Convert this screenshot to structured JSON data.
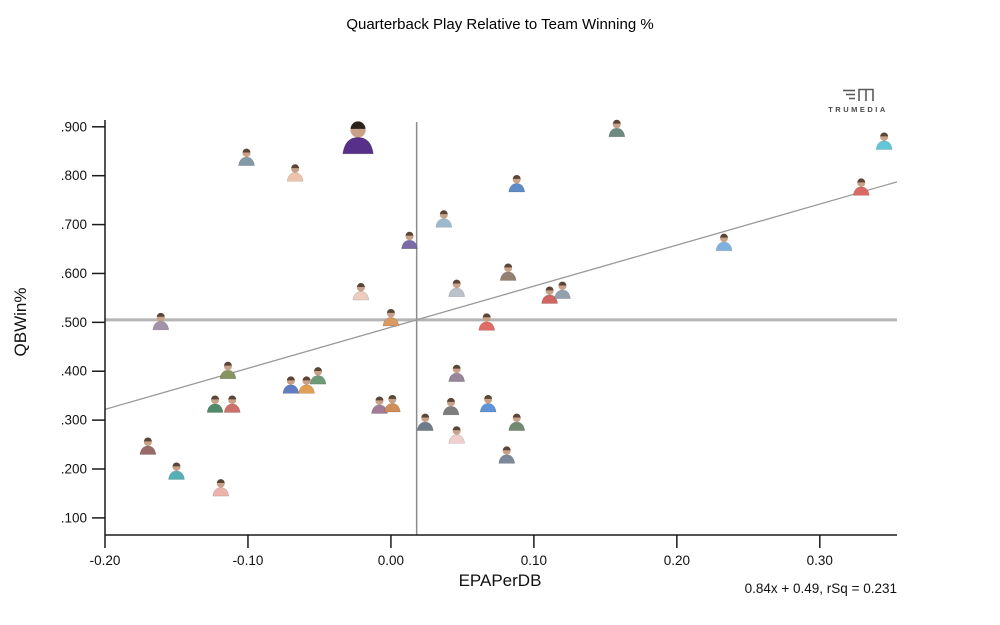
{
  "branding": {
    "name": "TRUMEDIA"
  },
  "chart_data": {
    "type": "scatter",
    "title": "Quarterback Play Relative to Team Winning %",
    "xlabel": "EPAPerDB",
    "ylabel": "QBWin%",
    "equation": "0.84x + 0.49, rSq = 0.231",
    "trend": {
      "slope": 0.84,
      "intercept": 0.49,
      "rsq": 0.231
    },
    "reference_lines": {
      "x": 0.018,
      "y": 0.505
    },
    "xlim": [
      -0.2,
      0.354
    ],
    "ylim": [
      0.065,
      0.918
    ],
    "x_ticks": [
      {
        "value": -0.2,
        "label": "-0.20"
      },
      {
        "value": -0.1,
        "label": "-0.10"
      },
      {
        "value": 0.0,
        "label": "0.00"
      },
      {
        "value": 0.1,
        "label": "0.10"
      },
      {
        "value": 0.2,
        "label": "0.20"
      },
      {
        "value": 0.3,
        "label": "0.30"
      }
    ],
    "y_ticks": [
      {
        "value": 0.9,
        "label": ".900"
      },
      {
        "value": 0.8,
        "label": ".800"
      },
      {
        "value": 0.7,
        "label": ".700"
      },
      {
        "value": 0.6,
        "label": ".600"
      },
      {
        "value": 0.5,
        "label": ".500"
      },
      {
        "value": 0.4,
        "label": ".400"
      },
      {
        "value": 0.3,
        "label": ".300"
      },
      {
        "value": 0.2,
        "label": ".200"
      },
      {
        "value": 0.1,
        "label": ".100"
      }
    ],
    "points": [
      {
        "x": -0.023,
        "y": 0.878,
        "color": "#57308a",
        "hair": "#2b221c",
        "highlight": true
      },
      {
        "x": 0.158,
        "y": 0.897,
        "color": "#6d8a80"
      },
      {
        "x": 0.345,
        "y": 0.871,
        "color": "#63c6d6"
      },
      {
        "x": -0.101,
        "y": 0.838,
        "color": "#8598a6"
      },
      {
        "x": -0.067,
        "y": 0.806,
        "color": "#eec3ab"
      },
      {
        "x": 0.088,
        "y": 0.784,
        "color": "#5f8cc7"
      },
      {
        "x": 0.329,
        "y": 0.777,
        "color": "#d96a66"
      },
      {
        "x": 0.037,
        "y": 0.712,
        "color": "#9db9cc"
      },
      {
        "x": 0.013,
        "y": 0.668,
        "color": "#7a6aa8"
      },
      {
        "x": 0.233,
        "y": 0.664,
        "color": "#7fb0de"
      },
      {
        "x": 0.082,
        "y": 0.603,
        "color": "#93806f"
      },
      {
        "x": -0.021,
        "y": 0.563,
        "color": "#eeccc0"
      },
      {
        "x": 0.046,
        "y": 0.57,
        "color": "#b9c2c9"
      },
      {
        "x": 0.111,
        "y": 0.556,
        "color": "#cf6661"
      },
      {
        "x": 0.12,
        "y": 0.566,
        "color": "#93a1ad"
      },
      {
        "x": 0.0,
        "y": 0.51,
        "color": "#d89a62"
      },
      {
        "x": -0.161,
        "y": 0.502,
        "color": "#a393a8"
      },
      {
        "x": 0.067,
        "y": 0.501,
        "color": "#e06a64"
      },
      {
        "x": -0.114,
        "y": 0.402,
        "color": "#87955f"
      },
      {
        "x": -0.051,
        "y": 0.391,
        "color": "#6f9a78"
      },
      {
        "x": 0.046,
        "y": 0.396,
        "color": "#97859a"
      },
      {
        "x": -0.07,
        "y": 0.372,
        "color": "#5f7ec2"
      },
      {
        "x": -0.059,
        "y": 0.372,
        "color": "#e2a055"
      },
      {
        "x": -0.123,
        "y": 0.333,
        "color": "#4f8a68"
      },
      {
        "x": -0.111,
        "y": 0.333,
        "color": "#cf6f6a"
      },
      {
        "x": -0.008,
        "y": 0.331,
        "color": "#a27b96"
      },
      {
        "x": 0.001,
        "y": 0.334,
        "color": "#cf8d5a"
      },
      {
        "x": 0.042,
        "y": 0.328,
        "color": "#7d7d7d"
      },
      {
        "x": 0.068,
        "y": 0.334,
        "color": "#5f94d8"
      },
      {
        "x": 0.024,
        "y": 0.296,
        "color": "#6e7b89"
      },
      {
        "x": 0.088,
        "y": 0.296,
        "color": "#6f8a6f"
      },
      {
        "x": 0.046,
        "y": 0.27,
        "color": "#efd0cc"
      },
      {
        "x": 0.081,
        "y": 0.229,
        "color": "#7b8998"
      },
      {
        "x": -0.17,
        "y": 0.247,
        "color": "#9a6a66"
      },
      {
        "x": -0.15,
        "y": 0.196,
        "color": "#55b0b5"
      },
      {
        "x": -0.119,
        "y": 0.162,
        "color": "#eab4ad"
      }
    ]
  }
}
